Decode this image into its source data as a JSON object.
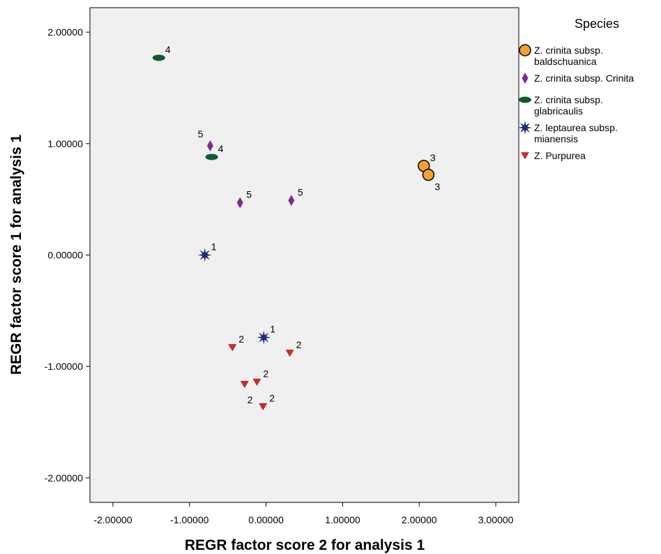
{
  "chart_data": {
    "type": "scatter",
    "title": "",
    "xlabel": "REGR factor score   2 for analysis 1",
    "ylabel": "REGR factor score   1 for analysis 1",
    "xlim": [
      -2.3,
      3.3
    ],
    "ylim": [
      -2.22,
      2.22
    ],
    "x_ticks": [
      -2,
      -1,
      0,
      1,
      2,
      3
    ],
    "x_tick_labels": [
      "-2.00000",
      "-1.00000",
      "0.00000",
      "1.00000",
      "2.00000",
      "3.00000"
    ],
    "y_ticks": [
      2,
      1,
      0,
      -1,
      -2
    ],
    "y_tick_labels": [
      "2.00000",
      "1.00000",
      "0.00000",
      "-1.00000",
      "-2.00000"
    ],
    "grid": false,
    "plot_background": "#f0f0f0",
    "legend": {
      "title": "Species",
      "position": "right"
    },
    "series": [
      {
        "name": "Z. crinita subsp. baldschuanica",
        "name_lines": [
          "Z. crinita subsp.",
          "baldschuanica"
        ],
        "marker": "circle",
        "color": "#f5a02f",
        "points": [
          {
            "x": 2.06,
            "y": 0.8,
            "label": "3",
            "label_pos": "above-right"
          },
          {
            "x": 2.12,
            "y": 0.72,
            "label": "3",
            "label_pos": "below-right"
          }
        ]
      },
      {
        "name": "Z. crinita subsp. Crinita",
        "name_lines": [
          "Z. crinita subsp. Crinita"
        ],
        "marker": "diamond",
        "color": "#7b2d8b",
        "points": [
          {
            "x": -0.73,
            "y": 0.98,
            "label": "5",
            "label_pos": "above-left"
          },
          {
            "x": -0.34,
            "y": 0.47,
            "label": "5",
            "label_pos": "above-right"
          },
          {
            "x": 0.33,
            "y": 0.49,
            "label": "5",
            "label_pos": "above-right"
          }
        ]
      },
      {
        "name": "Z. crinita subsp. glabricaulis",
        "name_lines": [
          "Z. crinita subsp.",
          "glabricaulis"
        ],
        "marker": "ellipse",
        "color": "#0e5a2e",
        "points": [
          {
            "x": -1.4,
            "y": 1.77,
            "label": "4",
            "label_pos": "above-right"
          },
          {
            "x": -0.71,
            "y": 0.88,
            "label": "4",
            "label_pos": "above-right"
          }
        ]
      },
      {
        "name": "Z. leptaurea subsp. mianensis",
        "name_lines": [
          "Z. leptaurea subsp.",
          "mianensis"
        ],
        "marker": "star",
        "color": "#1f2a78",
        "points": [
          {
            "x": -0.8,
            "y": 0.0,
            "label": "1",
            "label_pos": "above-right"
          },
          {
            "x": -0.03,
            "y": -0.74,
            "label": "1",
            "label_pos": "above-right"
          }
        ]
      },
      {
        "name": "Z. Purpurea",
        "name_lines": [
          "Z. Purpurea"
        ],
        "marker": "triangle-down",
        "color": "#d62728",
        "points": [
          {
            "x": -0.44,
            "y": -0.83,
            "label": "2",
            "label_pos": "above-right"
          },
          {
            "x": 0.31,
            "y": -0.88,
            "label": "2",
            "label_pos": "above-right"
          },
          {
            "x": -0.28,
            "y": -1.16,
            "label": "2",
            "label_pos": "none"
          },
          {
            "x": -0.12,
            "y": -1.14,
            "label": "2",
            "label_pos": "above-right"
          },
          {
            "x": -0.04,
            "y": -1.36,
            "label": "2",
            "label_pos": "above-right"
          }
        ],
        "extra_labels": [
          {
            "x": -0.21,
            "y": -1.3,
            "label": "2"
          }
        ]
      }
    ]
  }
}
